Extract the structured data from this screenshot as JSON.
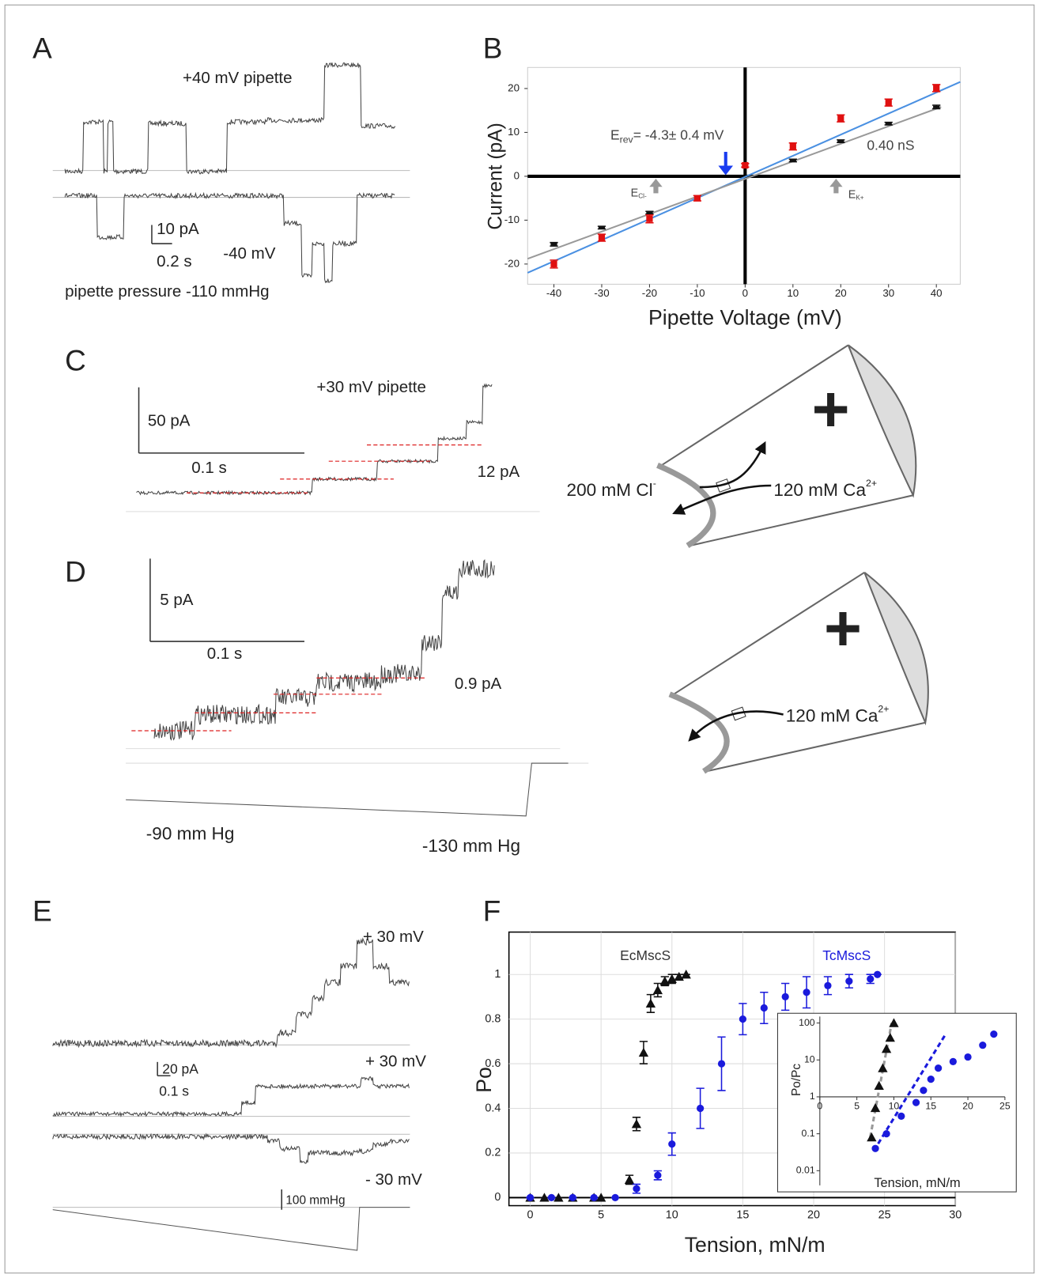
{
  "panel_labels": [
    "A",
    "B",
    "C",
    "D",
    "E",
    "F"
  ],
  "panel_a": {
    "label_top": "+40 mV pipette",
    "scale_current": "10 pA",
    "scale_time": "0.2 s",
    "label_bottom": "-40 mV",
    "pressure": "pipette pressure -110 mmHg"
  },
  "panel_c": {
    "voltage": "+30 mV pipette",
    "scale_current": "50 pA",
    "scale_time": "0.1 s",
    "step": "12 pA"
  },
  "panel_d": {
    "scale_current": "5 pA",
    "scale_time": "0.1 s",
    "step": "0.9 pA",
    "pressure_start": "-90 mm Hg",
    "pressure_end": "-130 mm Hg"
  },
  "panel_e": {
    "trace_1": "+ 30 mV",
    "scale_current": "20 pA",
    "scale_time": "0.1 s",
    "trace_2": "+ 30 mV",
    "trace_3": "- 30 mV",
    "scale_pressure": "100 mmHg"
  },
  "diagram_c": {
    "sign": "+",
    "left_ion": "200 mM Cl",
    "left_charge": "-",
    "right_ion": "120 mM Ca",
    "right_charge": "2+"
  },
  "diagram_d": {
    "sign": "+",
    "right_ion": "120 mM Ca",
    "right_charge": "2+"
  },
  "chart_data": [
    {
      "type": "scatter",
      "xlabel": "Pipette Voltage (mV)",
      "ylabel": "Current (pA)",
      "xlim": [
        -45.5,
        45
      ],
      "ylim": [
        -24.6,
        24.8
      ],
      "xticks": [
        -40,
        -30,
        -20,
        -10,
        0,
        10,
        20,
        30,
        40
      ],
      "yticks": [
        -20,
        -10,
        0,
        10,
        20
      ],
      "grid": false,
      "annotations": {
        "reversal": {
          "symbol": "E",
          "subscript": "rev",
          "text": "= -4.3± 0.4 mV"
        },
        "conductance": "0.40 nS",
        "e_cl": {
          "symbol": "E",
          "subscript": "Cl-"
        },
        "e_k": {
          "symbol": "E",
          "subscript": "K+"
        }
      },
      "series": [
        {
          "type": "line",
          "color": "#4a90e2",
          "x": [
            -45.5,
            45
          ],
          "values": [
            -22,
            21.5
          ]
        },
        {
          "type": "line",
          "color": "#999999",
          "x": [
            -45.5,
            41
          ],
          "values": [
            -18.8,
            15.8
          ]
        },
        {
          "type": "scatter",
          "marker": "dash",
          "color": "#111111",
          "x": [
            -40,
            -30,
            -20,
            10,
            20,
            30,
            40
          ],
          "values": [
            -15.5,
            -11.7,
            -8.3,
            3.6,
            8,
            12,
            15.8
          ],
          "errors": [
            0.4,
            0.3,
            0.3,
            0.3,
            0.3,
            0.3,
            0.4
          ]
        },
        {
          "type": "scatter",
          "marker": "square",
          "color": "#e01010",
          "x": [
            -40,
            -30,
            -20,
            -10,
            0,
            10,
            20,
            30,
            40
          ],
          "values": [
            -20,
            -14,
            -9.7,
            -5,
            2.5,
            6.8,
            13.2,
            16.8,
            20.1
          ],
          "errors": [
            0.9,
            0.8,
            0.9,
            0.6,
            0.4,
            0.8,
            0.8,
            0.8,
            0.8
          ]
        }
      ]
    },
    {
      "type": "scatter",
      "xlabel": "Tension, mN/m",
      "ylabel": "Po",
      "xlim": [
        -1.5,
        30
      ],
      "ylim": [
        -0.036,
        1.19
      ],
      "xticks": [
        0,
        5,
        10,
        15,
        20,
        25,
        30
      ],
      "yticks": [
        0,
        0.2,
        0.4,
        0.6,
        0.8,
        1
      ],
      "grid": true,
      "series": [
        {
          "name": "EcMscS",
          "type": "scatter",
          "marker": "triangle",
          "color": "#111111",
          "x": [
            0,
            1,
            2,
            3,
            4.5,
            5,
            7,
            7.5,
            8,
            8.5,
            9,
            9.5,
            10,
            10.5,
            11
          ],
          "values": [
            0,
            0,
            0,
            0,
            0,
            0,
            0.08,
            0.33,
            0.65,
            0.87,
            0.93,
            0.97,
            0.98,
            0.99,
            1
          ],
          "errors": [
            0,
            0,
            0,
            0,
            0,
            0,
            0.02,
            0.03,
            0.05,
            0.04,
            0.03,
            0.02,
            0.02,
            0.01,
            0
          ]
        },
        {
          "name": "TcMscS",
          "type": "scatter",
          "marker": "circle",
          "color": "#1a1adc",
          "x": [
            0,
            1.5,
            3,
            4.5,
            6,
            7.5,
            9,
            10,
            12,
            13.5,
            15,
            16.5,
            18,
            19.5,
            21,
            22.5,
            24,
            24.5
          ],
          "values": [
            0,
            0,
            0,
            0,
            0,
            0.04,
            0.1,
            0.24,
            0.4,
            0.6,
            0.8,
            0.85,
            0.9,
            0.92,
            0.95,
            0.97,
            0.98,
            1
          ],
          "errors": [
            0,
            0,
            0,
            0,
            0,
            0.02,
            0.02,
            0.05,
            0.09,
            0.12,
            0.07,
            0.07,
            0.06,
            0.07,
            0.04,
            0.03,
            0.02,
            0
          ]
        }
      ]
    },
    {
      "type": "scatter",
      "xlabel": "Tension, mN/m",
      "ylabel": "Po/Pc",
      "log_y": true,
      "xlim": [
        0,
        25
      ],
      "ylim": [
        0.004,
        150
      ],
      "xticks": [
        0,
        5,
        10,
        15,
        20,
        25
      ],
      "yticks": [
        0.01,
        0.1,
        1,
        10,
        100
      ],
      "grid": false,
      "series": [
        {
          "type": "line",
          "dash": true,
          "color": "#999999",
          "x": [
            6.8,
            9.7
          ],
          "values": [
            0.08,
            100
          ]
        },
        {
          "type": "line",
          "dash": true,
          "color": "#1a1adc",
          "x": [
            7.3,
            17
          ],
          "values": [
            0.035,
            50
          ]
        },
        {
          "type": "scatter",
          "marker": "triangle",
          "color": "#111111",
          "x": [
            7,
            7.5,
            8,
            8.5,
            9,
            9.5,
            10
          ],
          "values": [
            0.08,
            0.5,
            2,
            6,
            20,
            40,
            100
          ]
        },
        {
          "type": "scatter",
          "marker": "circle",
          "color": "#1a1adc",
          "x": [
            7.5,
            9,
            11,
            13,
            14,
            15,
            16,
            18,
            20,
            22,
            23.5
          ],
          "values": [
            0.04,
            0.1,
            0.3,
            0.7,
            1.5,
            3,
            6,
            9,
            12,
            25,
            50
          ]
        }
      ]
    }
  ]
}
